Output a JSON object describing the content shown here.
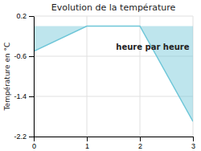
{
  "chart_data": {
    "type": "area",
    "title": "Evolution de la température",
    "ylabel": "Température en °C",
    "x": [
      0,
      1,
      2,
      3
    ],
    "values": [
      -0.5,
      0.0,
      0.0,
      -1.9
    ],
    "color": "#6ec6d8",
    "xlim": [
      0,
      3
    ],
    "xticks": [
      0,
      1,
      2,
      3
    ],
    "ylim": [
      -2.2,
      0.2
    ],
    "yticks": [
      0.2,
      -0.6,
      -1.4,
      -2.2
    ],
    "grid": true,
    "annotations": [
      {
        "text": "heure par heure",
        "x": 1.55,
        "y": -0.35
      }
    ]
  }
}
